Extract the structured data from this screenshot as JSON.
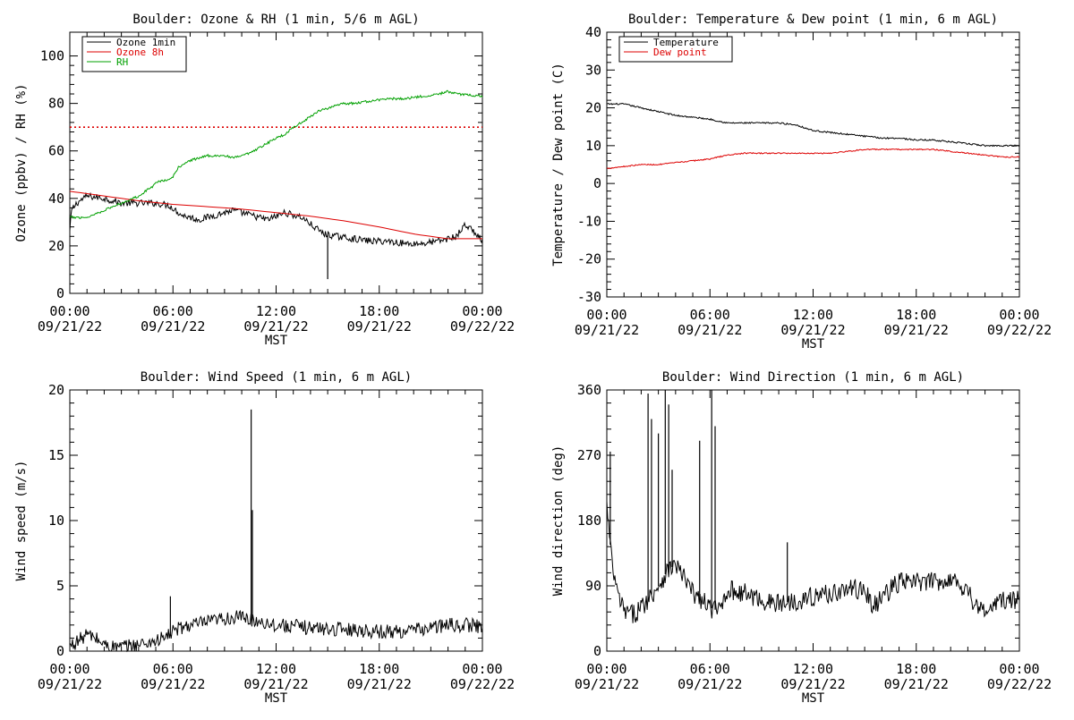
{
  "colors": {
    "ozone_1min": "#000000",
    "ozone_8h": "#dd0000",
    "rh": "#00a000",
    "threshold": "#dd0000",
    "temperature": "#000000",
    "dew_point": "#dd0000",
    "wind": "#000000",
    "axis": "#000000"
  },
  "chart_data": [
    {
      "id": "ozone_rh",
      "type": "line",
      "title": "Boulder: Ozone & RH (1 min, 5/6 m AGL)",
      "ylabel": "Ozone (ppbv) / RH (%)",
      "xlabel": "MST",
      "x_range_hours": [
        0,
        24
      ],
      "x_ticks": [
        {
          "time": "00:00",
          "date": "09/21/22"
        },
        {
          "time": "06:00",
          "date": "09/21/22"
        },
        {
          "time": "12:00",
          "date": "09/21/22"
        },
        {
          "time": "18:00",
          "date": "09/21/22"
        },
        {
          "time": "00:00",
          "date": "09/22/22"
        }
      ],
      "ylim": [
        0,
        110
      ],
      "y_ticks": [
        0,
        20,
        40,
        60,
        80,
        100
      ],
      "threshold": 70,
      "legend": "top-left",
      "series": [
        {
          "name": "Ozone 1min",
          "color_key": "ozone_1min",
          "noise": 1.4,
          "x": [
            0,
            0.1,
            0.4,
            1,
            2,
            3,
            4,
            5,
            5.8,
            6.5,
            7.5,
            8.5,
            9.5,
            10.5,
            11.5,
            12.5,
            13.5,
            14.2,
            14.8,
            15.5,
            16.5,
            17.5,
            18.5,
            19.5,
            20.5,
            21.5,
            22.5,
            23,
            23.5,
            24
          ],
          "y": [
            26,
            35,
            38,
            41,
            40,
            38,
            38,
            38,
            37,
            33,
            31,
            33,
            35,
            33,
            31,
            34,
            32,
            28,
            25,
            24,
            23,
            22,
            22,
            21,
            21,
            22,
            24,
            29,
            26,
            22
          ],
          "spikes": [
            {
              "x": 15.0,
              "y": 6
            }
          ]
        },
        {
          "name": "Ozone 8h",
          "color_key": "ozone_8h",
          "noise": 0,
          "x": [
            0,
            2,
            4,
            6,
            8,
            10,
            12,
            14,
            16,
            18,
            20,
            22,
            24
          ],
          "y": [
            43,
            41,
            39,
            37.5,
            36.5,
            35.5,
            34,
            32.5,
            30.5,
            28,
            25,
            23,
            23
          ]
        },
        {
          "name": "RH",
          "color_key": "rh",
          "noise": 0.5,
          "x": [
            0,
            0.2,
            1,
            2,
            3,
            4,
            4.8,
            5,
            5.9,
            6.3,
            7,
            8,
            9,
            9.5,
            10.5,
            11.2,
            11.9,
            12.5,
            13,
            13.5,
            14.5,
            15.5,
            16,
            16.5,
            17.5,
            18.5,
            19.5,
            20.5,
            21.5,
            22,
            22.5,
            24
          ],
          "y": [
            32,
            32,
            32,
            35,
            38,
            41,
            45,
            47,
            48,
            53,
            56,
            58,
            58,
            57,
            59,
            62,
            65,
            67,
            70,
            72,
            77,
            79,
            80,
            80,
            81,
            82,
            82,
            83,
            84,
            85,
            84,
            83
          ]
        }
      ]
    },
    {
      "id": "temp_dew",
      "type": "line",
      "title": "Boulder: Temperature & Dew point (1 min, 6 m AGL)",
      "ylabel": "Temperature / Dew point (C)",
      "xlabel": "MST",
      "x_range_hours": [
        0,
        24
      ],
      "x_ticks": [
        {
          "time": "00:00",
          "date": "09/21/22"
        },
        {
          "time": "06:00",
          "date": "09/21/22"
        },
        {
          "time": "12:00",
          "date": "09/21/22"
        },
        {
          "time": "18:00",
          "date": "09/21/22"
        },
        {
          "time": "00:00",
          "date": "09/22/22"
        }
      ],
      "ylim": [
        -30,
        40
      ],
      "y_ticks": [
        -30,
        -20,
        -10,
        0,
        10,
        20,
        30,
        40
      ],
      "legend": "top-left",
      "series": [
        {
          "name": "Temperature",
          "color_key": "temperature",
          "noise": 0.2,
          "x": [
            0,
            1,
            2,
            3,
            4,
            5,
            6,
            7,
            8,
            9,
            10,
            11,
            12,
            13,
            14,
            15,
            16,
            17,
            18,
            19,
            20,
            21,
            22,
            23,
            24
          ],
          "y": [
            21,
            21,
            20,
            19,
            18,
            17.5,
            17,
            16,
            16,
            16,
            16,
            15.5,
            14,
            13.5,
            13,
            12.5,
            12,
            12,
            11.5,
            11.5,
            11,
            10.5,
            10,
            10,
            10
          ]
        },
        {
          "name": "Dew point",
          "color_key": "dew_point",
          "noise": 0.15,
          "x": [
            0,
            1,
            2,
            3,
            4,
            5,
            6,
            7,
            8,
            9,
            10,
            11,
            12,
            13,
            14,
            15,
            16,
            17,
            18,
            19,
            20,
            21,
            22,
            23,
            24
          ],
          "y": [
            4,
            4.5,
            5,
            5,
            5.5,
            6,
            6.5,
            7.5,
            8,
            8,
            8,
            8,
            8,
            8,
            8.5,
            9,
            9,
            9,
            9,
            9,
            8.5,
            8,
            7.5,
            7,
            7
          ]
        }
      ]
    },
    {
      "id": "wind_speed",
      "type": "line",
      "title": "Boulder: Wind Speed (1 min, 6 m AGL)",
      "ylabel": "Wind speed (m/s)",
      "xlabel": "MST",
      "x_range_hours": [
        0,
        24
      ],
      "x_ticks": [
        {
          "time": "00:00",
          "date": "09/21/22"
        },
        {
          "time": "06:00",
          "date": "09/21/22"
        },
        {
          "time": "12:00",
          "date": "09/21/22"
        },
        {
          "time": "18:00",
          "date": "09/21/22"
        },
        {
          "time": "00:00",
          "date": "09/22/22"
        }
      ],
      "ylim": [
        0,
        20
      ],
      "y_ticks": [
        0,
        5,
        10,
        15,
        20
      ],
      "series": [
        {
          "name": "",
          "color_key": "wind",
          "noise": 0.55,
          "x": [
            0,
            0.5,
            1,
            1.5,
            2,
            2.5,
            3,
            4,
            5,
            5.5,
            6,
            6.5,
            7,
            8,
            9,
            10,
            10.5,
            11,
            12,
            13,
            14,
            15,
            16,
            17,
            18,
            19,
            20,
            21,
            22,
            23,
            24
          ],
          "y": [
            0.4,
            0.8,
            1.3,
            1.0,
            0.5,
            0.3,
            0.3,
            0.5,
            0.8,
            1.0,
            1.5,
            1.8,
            2.0,
            2.2,
            2.5,
            2.6,
            2.4,
            2.3,
            2.0,
            1.9,
            1.8,
            1.7,
            1.7,
            1.6,
            1.5,
            1.5,
            1.6,
            1.8,
            2.0,
            2.0,
            1.9
          ],
          "spikes": [
            {
              "x": 5.85,
              "y": 4.2
            },
            {
              "x": 10.55,
              "y": 18.5
            },
            {
              "x": 10.62,
              "y": 10.8
            }
          ]
        }
      ]
    },
    {
      "id": "wind_dir",
      "type": "line",
      "title": "Boulder: Wind Direction (1 min, 6 m AGL)",
      "ylabel": "Wind direction (deg)",
      "xlabel": "MST",
      "x_range_hours": [
        0,
        24
      ],
      "x_ticks": [
        {
          "time": "00:00",
          "date": "09/21/22"
        },
        {
          "time": "06:00",
          "date": "09/21/22"
        },
        {
          "time": "12:00",
          "date": "09/21/22"
        },
        {
          "time": "18:00",
          "date": "09/21/22"
        },
        {
          "time": "00:00",
          "date": "09/22/22"
        }
      ],
      "ylim": [
        0,
        360
      ],
      "y_ticks": [
        0,
        90,
        180,
        270,
        360
      ],
      "series": [
        {
          "name": "",
          "color_key": "wind",
          "noise": 14,
          "x": [
            0,
            0.3,
            0.6,
            1,
            1.5,
            2,
            2.5,
            3,
            3.5,
            4,
            4.5,
            5,
            5.5,
            6,
            6.5,
            7,
            8,
            9,
            10,
            11,
            12,
            13,
            14,
            15,
            15.5,
            16,
            17,
            18,
            19,
            20,
            21,
            21.5,
            22,
            23,
            24
          ],
          "y": [
            200,
            120,
            80,
            55,
            50,
            60,
            75,
            90,
            110,
            120,
            100,
            80,
            70,
            60,
            55,
            85,
            80,
            70,
            65,
            70,
            75,
            80,
            85,
            85,
            60,
            75,
            95,
            95,
            95,
            100,
            85,
            60,
            55,
            70,
            70
          ],
          "spikes": [
            {
              "x": 0.2,
              "y": 275
            },
            {
              "x": 2.4,
              "y": 355
            },
            {
              "x": 2.6,
              "y": 320
            },
            {
              "x": 3.0,
              "y": 300
            },
            {
              "x": 3.4,
              "y": 360
            },
            {
              "x": 3.6,
              "y": 340
            },
            {
              "x": 3.8,
              "y": 250
            },
            {
              "x": 5.4,
              "y": 290
            },
            {
              "x": 6.1,
              "y": 360
            },
            {
              "x": 6.3,
              "y": 310
            },
            {
              "x": 10.5,
              "y": 150
            }
          ]
        }
      ]
    }
  ]
}
